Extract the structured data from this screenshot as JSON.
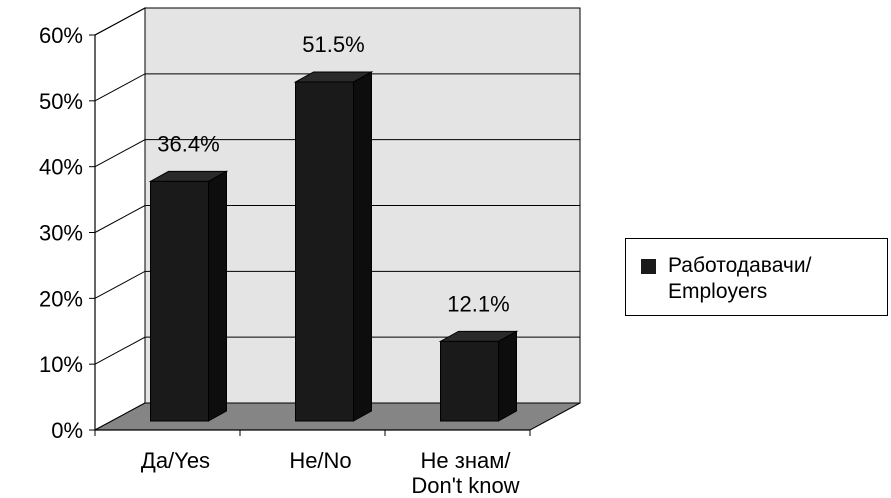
{
  "chart_data": {
    "type": "bar",
    "categories": [
      "Да/Yes",
      "Не/No",
      "Не знам/\nDon't know"
    ],
    "series": [
      {
        "name": "Работодавачи/\nEmployers",
        "values": [
          36.4,
          51.5,
          12.1
        ]
      }
    ],
    "data_labels": [
      "36.4%",
      "51.5%",
      "12.1%"
    ],
    "y_ticks": [
      "0%",
      "10%",
      "20%",
      "30%",
      "40%",
      "50%",
      "60%"
    ],
    "ylim": [
      0,
      60
    ],
    "grid": true,
    "legend_position": "right",
    "colors": {
      "bar_front": "#1a1a1a",
      "bar_side": "#0d0d0d",
      "bar_top": "#2a2a2a",
      "back_wall": "#e4e4e4",
      "floor": "#858585",
      "gridline": "#000000"
    }
  }
}
